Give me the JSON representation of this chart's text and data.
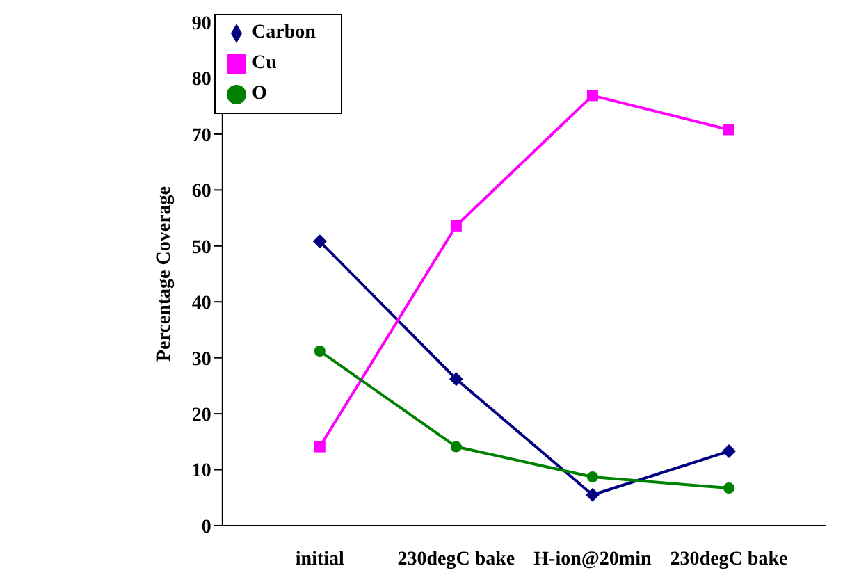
{
  "chart_data": {
    "type": "line",
    "ylabel": "Percentage Coverage",
    "categories": [
      "initial",
      "230degC bake",
      "H-ion@20min",
      "230degC bake"
    ],
    "series": [
      {
        "name": "Carbon",
        "color": "#000080",
        "marker": "diamond",
        "values": [
          50.8,
          26.2,
          5.5,
          13.3
        ]
      },
      {
        "name": "Cu",
        "color": "#ff00ff",
        "marker": "square",
        "values": [
          14.1,
          53.6,
          76.9,
          70.8
        ]
      },
      {
        "name": "O",
        "color": "#008000",
        "marker": "circle",
        "values": [
          31.2,
          14.1,
          8.7,
          6.7
        ]
      }
    ],
    "ylim": [
      0,
      90
    ],
    "yticks": [
      0,
      10,
      20,
      30,
      40,
      50,
      60,
      70,
      80,
      90
    ],
    "grid": false,
    "legend": "top left",
    "line_style": "solid"
  }
}
